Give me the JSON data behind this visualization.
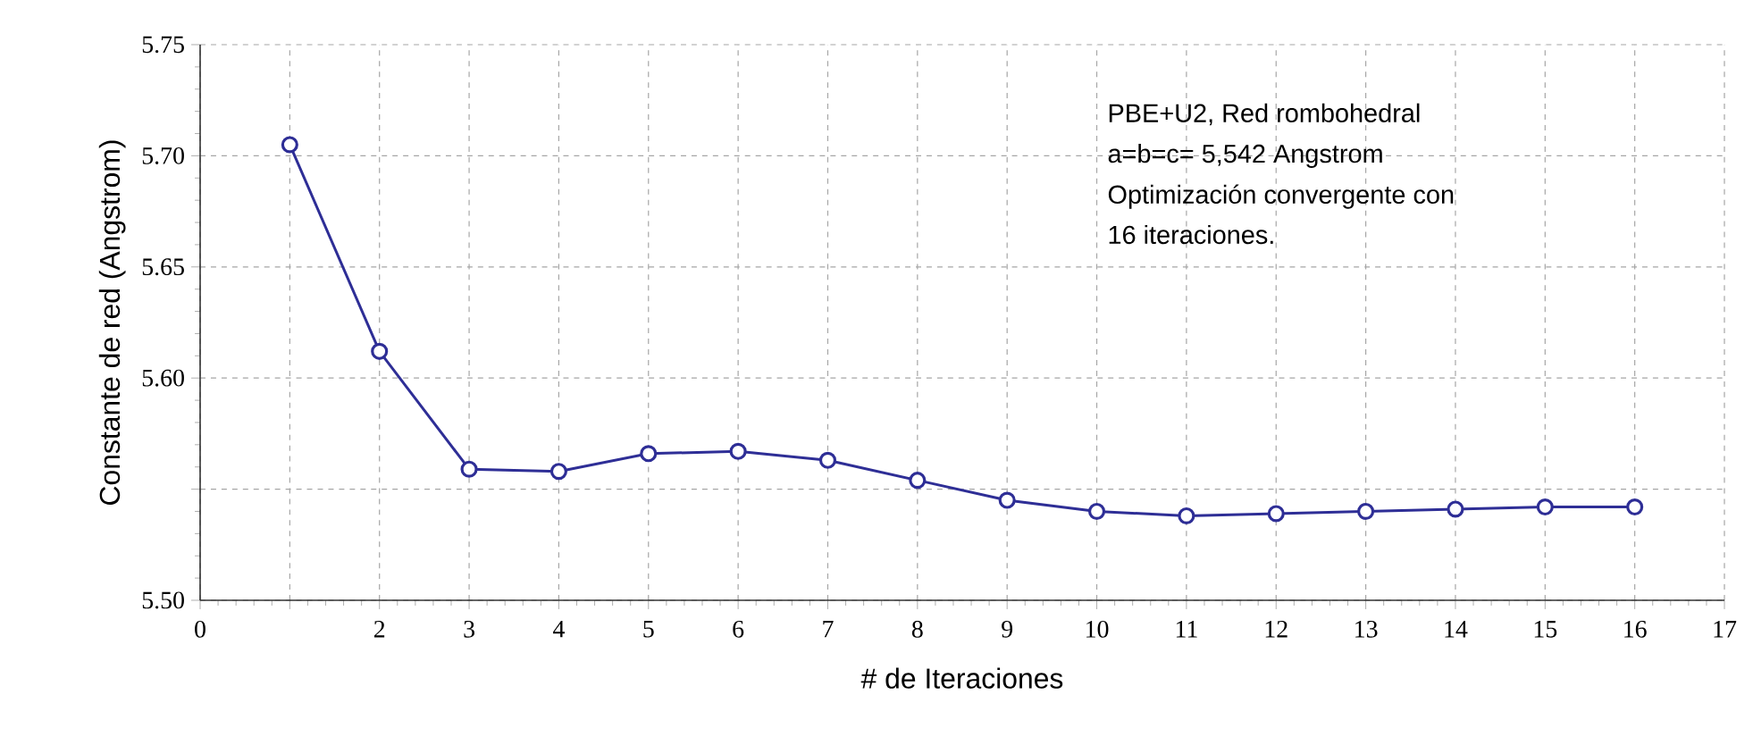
{
  "chart_data": {
    "type": "line",
    "xlabel": "# de Iteraciones",
    "ylabel": "Constante de red (Angstrom)",
    "x": [
      1,
      2,
      3,
      4,
      5,
      6,
      7,
      8,
      9,
      10,
      11,
      12,
      13,
      14,
      15,
      16
    ],
    "series": [
      {
        "color": "#2e2e96",
        "values": [
          5.705,
          5.612,
          5.559,
          5.558,
          5.566,
          5.567,
          5.563,
          5.554,
          5.545,
          5.54,
          5.538,
          5.539,
          5.54,
          5.541,
          5.542,
          5.542
        ]
      }
    ],
    "xlim": [
      0,
      17
    ],
    "xticks": [
      0,
      {
        "value": 1,
        "label": null
      },
      2,
      3,
      4,
      5,
      6,
      7,
      8,
      9,
      10,
      11,
      12,
      13,
      14,
      15,
      16,
      17
    ],
    "ylim": [
      5.5,
      5.75
    ],
    "yticks": [
      {
        "value": 5.5,
        "label": "5.50"
      },
      {
        "value": 5.55,
        "label": null
      },
      {
        "value": 5.6,
        "label": "5.60"
      },
      {
        "value": 5.65,
        "label": "5.65"
      },
      {
        "value": 5.7,
        "label": "5.70"
      },
      {
        "value": 5.75,
        "label": "5.75"
      }
    ],
    "grid": true,
    "marker": "circle",
    "line_style": "solid",
    "annotations": [
      "PBE+U2, Red rombohedral",
      "a=b=c= 5,542 Angstrom",
      "Optimización convergente con",
      "16 iteraciones."
    ]
  }
}
